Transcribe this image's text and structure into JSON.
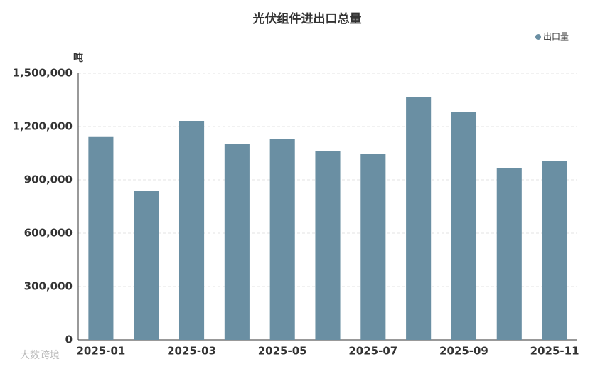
{
  "chart_data": {
    "type": "bar",
    "title": "光伏组件进出口总量",
    "y_unit": "吨",
    "categories": [
      "2025-01",
      null,
      "2025-03",
      null,
      "2025-05",
      null,
      "2025-07",
      null,
      "2025-09",
      null,
      "2025-11"
    ],
    "series": [
      {
        "name": "出口量",
        "color": "#6a8fa3",
        "values": [
          1145000,
          840000,
          1232000,
          1104000,
          1132000,
          1064000,
          1044000,
          1364000,
          1284000,
          968000,
          1004000
        ]
      }
    ],
    "ylim": [
      0,
      1500000
    ],
    "yticks": [
      0,
      {
        "value": 300000,
        "label": "300,000"
      },
      {
        "value": 600000,
        "label": "600,000"
      },
      {
        "value": 900000,
        "label": "900,000"
      },
      {
        "value": 1200000,
        "label": "1,200,000"
      },
      {
        "value": 1500000,
        "label": "1,500,000"
      }
    ],
    "grid": true,
    "legend": "top-right"
  },
  "footer_logo": "大数跨境"
}
